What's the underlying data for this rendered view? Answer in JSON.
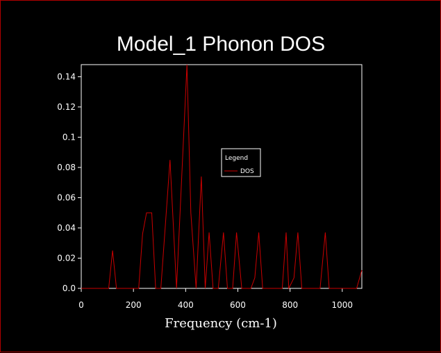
{
  "colors": {
    "background": "#000000",
    "axis": "#ffffff",
    "series": "#cc0000",
    "border": "#b00000"
  },
  "chart_data": {
    "type": "line",
    "title": "Model_1 Phonon DOS",
    "xlabel": "Frequency (cm-1)",
    "ylabel": "",
    "xlim": [
      0,
      1075
    ],
    "ylim": [
      0,
      0.148
    ],
    "xticks": [
      0,
      200,
      400,
      600,
      800,
      1000
    ],
    "xtick_labels": [
      "0",
      "200",
      "400",
      "600",
      "800",
      "1000"
    ],
    "yticks": [
      0,
      0.02,
      0.04,
      0.06,
      0.08,
      0.1,
      0.12,
      0.14
    ],
    "ytick_labels": [
      "0.0",
      "0.02",
      "0.04",
      "0.06",
      "0.08",
      "0.1",
      "0.12",
      "0.14"
    ],
    "legend": {
      "title": "Legend",
      "entries": [
        "DOS"
      ],
      "placement": "center-right"
    },
    "series": [
      {
        "name": "DOS",
        "x": [
          0,
          105,
          120,
          135,
          220,
          235,
          250,
          270,
          285,
          305,
          340,
          365,
          405,
          420,
          440,
          460,
          475,
          490,
          505,
          525,
          545,
          560,
          580,
          595,
          615,
          650,
          665,
          680,
          695,
          770,
          785,
          795,
          815,
          830,
          845,
          915,
          935,
          950,
          1055,
          1075
        ],
        "y": [
          0,
          0,
          0.025,
          0,
          0,
          0.036,
          0.05,
          0.05,
          0,
          0,
          0.085,
          0,
          0.148,
          0.05,
          0,
          0.074,
          0,
          0.037,
          0,
          0,
          0.037,
          0,
          0,
          0.037,
          0,
          0,
          0.007,
          0.037,
          0,
          0,
          0.037,
          0,
          0.007,
          0.037,
          0,
          0,
          0.037,
          0,
          0,
          0.012
        ]
      }
    ]
  }
}
